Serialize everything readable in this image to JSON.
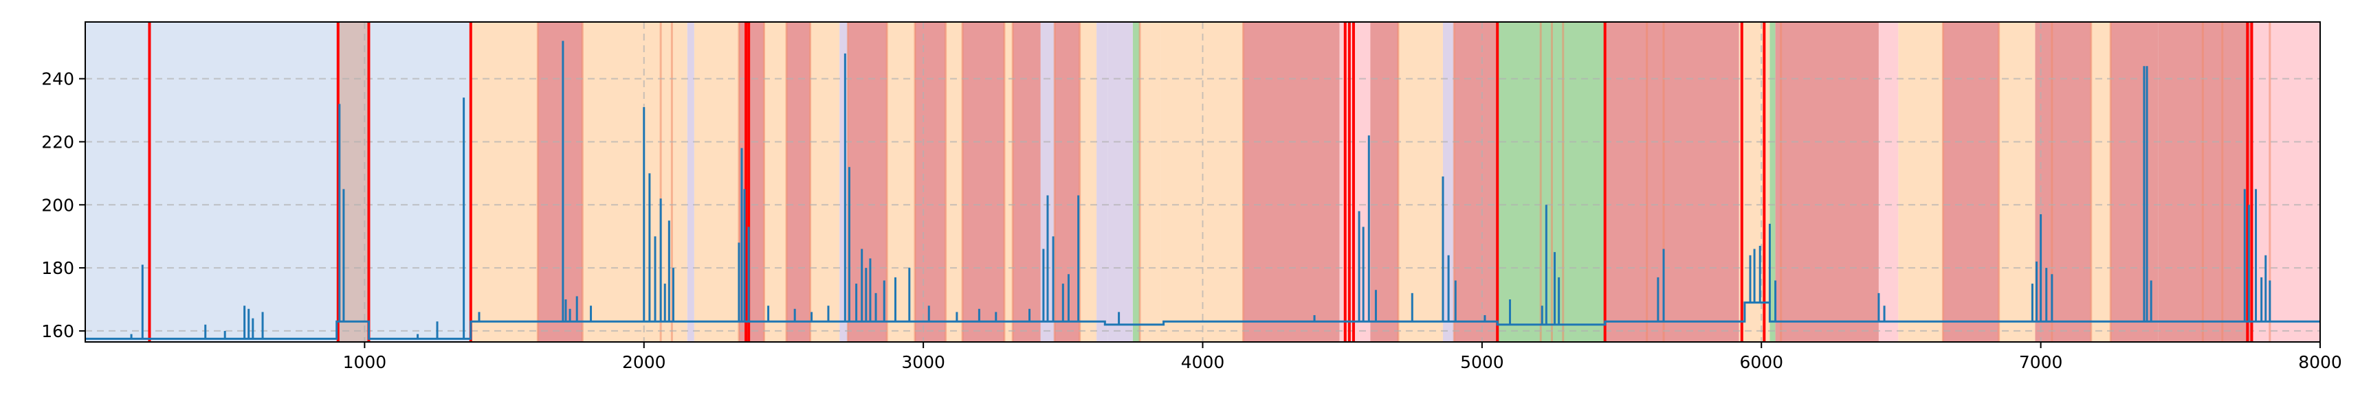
{
  "chart_data": {
    "type": "line",
    "title": "",
    "xlabel": "",
    "ylabel": "",
    "xlim": [
      0,
      8000
    ],
    "ylim": [
      156.5,
      258
    ],
    "grid": "dashed",
    "x_ticks": [
      1000,
      2000,
      3000,
      4000,
      5000,
      6000,
      7000,
      8000
    ],
    "x_tick_labels": [
      "1000",
      "2000",
      "3000",
      "4000",
      "5000",
      "6000",
      "7000",
      "8000"
    ],
    "y_ticks": [
      160,
      180,
      200,
      220,
      240
    ],
    "y_tick_labels": [
      "160",
      "180",
      "200",
      "220",
      "240"
    ],
    "line_color": "#1f77b4",
    "band_colors": {
      "blue": "#dbe5f4",
      "peach": "#ffdfbf",
      "red": "#e89a9a",
      "purple": "#ddd3ea",
      "green": "#a9d8a5",
      "taupe": "#d7c0bc",
      "pink": "#ffd0d6"
    },
    "background_bands": [
      {
        "x0": 0,
        "x1": 900,
        "color": "blue"
      },
      {
        "x0": 900,
        "x1": 1015,
        "color": "taupe"
      },
      {
        "x0": 1015,
        "x1": 1375,
        "color": "blue"
      },
      {
        "x0": 1375,
        "x1": 1620,
        "color": "peach"
      },
      {
        "x0": 1620,
        "x1": 1780,
        "color": "red"
      },
      {
        "x0": 1780,
        "x1": 2155,
        "color": "peach"
      },
      {
        "x0": 2155,
        "x1": 2180,
        "color": "purple"
      },
      {
        "x0": 2180,
        "x1": 2340,
        "color": "peach"
      },
      {
        "x0": 2340,
        "x1": 2430,
        "color": "red"
      },
      {
        "x0": 2430,
        "x1": 2510,
        "color": "peach"
      },
      {
        "x0": 2510,
        "x1": 2595,
        "color": "red"
      },
      {
        "x0": 2595,
        "x1": 2700,
        "color": "peach"
      },
      {
        "x0": 2700,
        "x1": 2730,
        "color": "purple"
      },
      {
        "x0": 2730,
        "x1": 2870,
        "color": "red"
      },
      {
        "x0": 2870,
        "x1": 2970,
        "color": "peach"
      },
      {
        "x0": 2970,
        "x1": 3080,
        "color": "red"
      },
      {
        "x0": 3080,
        "x1": 3140,
        "color": "peach"
      },
      {
        "x0": 3140,
        "x1": 3290,
        "color": "red"
      },
      {
        "x0": 3290,
        "x1": 3320,
        "color": "peach"
      },
      {
        "x0": 3320,
        "x1": 3420,
        "color": "red"
      },
      {
        "x0": 3420,
        "x1": 3470,
        "color": "purple"
      },
      {
        "x0": 3470,
        "x1": 3560,
        "color": "red"
      },
      {
        "x0": 3560,
        "x1": 3620,
        "color": "peach"
      },
      {
        "x0": 3620,
        "x1": 3660,
        "color": "purple"
      },
      {
        "x0": 3660,
        "x1": 3750,
        "color": "purple"
      },
      {
        "x0": 3750,
        "x1": 3775,
        "color": "green"
      },
      {
        "x0": 3775,
        "x1": 3850,
        "color": "peach"
      },
      {
        "x0": 3850,
        "x1": 4145,
        "color": "peach"
      },
      {
        "x0": 4145,
        "x1": 4490,
        "color": "red"
      },
      {
        "x0": 4490,
        "x1": 4560,
        "color": "pink"
      },
      {
        "x0": 4560,
        "x1": 4600,
        "color": "pink"
      },
      {
        "x0": 4600,
        "x1": 4700,
        "color": "red"
      },
      {
        "x0": 4700,
        "x1": 4860,
        "color": "peach"
      },
      {
        "x0": 4860,
        "x1": 4900,
        "color": "purple"
      },
      {
        "x0": 4900,
        "x1": 5055,
        "color": "red"
      },
      {
        "x0": 5055,
        "x1": 5440,
        "color": "green"
      },
      {
        "x0": 5440,
        "x1": 5920,
        "color": "red"
      },
      {
        "x0": 5920,
        "x1": 6030,
        "color": "peach"
      },
      {
        "x0": 6030,
        "x1": 6050,
        "color": "green"
      },
      {
        "x0": 6050,
        "x1": 6420,
        "color": "red"
      },
      {
        "x0": 6420,
        "x1": 6490,
        "color": "pink"
      },
      {
        "x0": 6490,
        "x1": 6650,
        "color": "peach"
      },
      {
        "x0": 6650,
        "x1": 6850,
        "color": "red"
      },
      {
        "x0": 6850,
        "x1": 6980,
        "color": "peach"
      },
      {
        "x0": 6980,
        "x1": 7180,
        "color": "red"
      },
      {
        "x0": 7180,
        "x1": 7250,
        "color": "peach"
      },
      {
        "x0": 7250,
        "x1": 7420,
        "color": "red"
      },
      {
        "x0": 7420,
        "x1": 7760,
        "color": "red"
      },
      {
        "x0": 7760,
        "x1": 8000,
        "color": "pink"
      }
    ],
    "band_edges_faint": [
      1620,
      1780,
      2060,
      2100,
      2340,
      2430,
      2510,
      2595,
      2730,
      2870,
      2970,
      3080,
      3140,
      3290,
      3320,
      3470,
      3560,
      3775,
      4145,
      4700,
      4900,
      5210,
      5250,
      5290,
      5590,
      5650,
      6070,
      6650,
      6850,
      7040,
      7180,
      7250,
      7580,
      7650,
      7820
    ],
    "band_edges_strong": [
      230,
      905,
      1015,
      1380,
      2365,
      2375,
      4510,
      4525,
      4540,
      5055,
      5440,
      5930,
      6010,
      7740,
      7755
    ],
    "baseline_segments": [
      {
        "x0": 0,
        "x1": 900,
        "y": 157.5
      },
      {
        "x0": 900,
        "x1": 1015,
        "y": 163
      },
      {
        "x0": 1015,
        "x1": 1380,
        "y": 157.5
      },
      {
        "x0": 1380,
        "x1": 3650,
        "y": 163
      },
      {
        "x0": 3650,
        "x1": 3860,
        "y": 162
      },
      {
        "x0": 3860,
        "x1": 5055,
        "y": 163
      },
      {
        "x0": 5055,
        "x1": 5440,
        "y": 162
      },
      {
        "x0": 5440,
        "x1": 5940,
        "y": 163
      },
      {
        "x0": 5940,
        "x1": 6030,
        "y": 169
      },
      {
        "x0": 6030,
        "x1": 8000,
        "y": 163
      }
    ],
    "spikes": [
      {
        "x": 205,
        "y": 181
      },
      {
        "x": 165,
        "y": 159
      },
      {
        "x": 430,
        "y": 162
      },
      {
        "x": 500,
        "y": 160
      },
      {
        "x": 570,
        "y": 168
      },
      {
        "x": 585,
        "y": 167
      },
      {
        "x": 600,
        "y": 164
      },
      {
        "x": 635,
        "y": 166
      },
      {
        "x": 910,
        "y": 232
      },
      {
        "x": 925,
        "y": 205
      },
      {
        "x": 1190,
        "y": 159
      },
      {
        "x": 1260,
        "y": 163
      },
      {
        "x": 1355,
        "y": 234
      },
      {
        "x": 1410,
        "y": 166
      },
      {
        "x": 1710,
        "y": 252
      },
      {
        "x": 1720,
        "y": 170
      },
      {
        "x": 1735,
        "y": 167
      },
      {
        "x": 1760,
        "y": 171
      },
      {
        "x": 1810,
        "y": 168
      },
      {
        "x": 2000,
        "y": 231
      },
      {
        "x": 2020,
        "y": 210
      },
      {
        "x": 2040,
        "y": 190
      },
      {
        "x": 2060,
        "y": 202
      },
      {
        "x": 2075,
        "y": 175
      },
      {
        "x": 2090,
        "y": 195
      },
      {
        "x": 2105,
        "y": 180
      },
      {
        "x": 2340,
        "y": 188
      },
      {
        "x": 2350,
        "y": 218
      },
      {
        "x": 2360,
        "y": 205
      },
      {
        "x": 2375,
        "y": 193
      },
      {
        "x": 2445,
        "y": 168
      },
      {
        "x": 2540,
        "y": 167
      },
      {
        "x": 2600,
        "y": 166
      },
      {
        "x": 2660,
        "y": 168
      },
      {
        "x": 2720,
        "y": 248
      },
      {
        "x": 2735,
        "y": 212
      },
      {
        "x": 2760,
        "y": 175
      },
      {
        "x": 2780,
        "y": 186
      },
      {
        "x": 2795,
        "y": 180
      },
      {
        "x": 2810,
        "y": 183
      },
      {
        "x": 2830,
        "y": 172
      },
      {
        "x": 2860,
        "y": 176
      },
      {
        "x": 2900,
        "y": 177
      },
      {
        "x": 2950,
        "y": 180
      },
      {
        "x": 3020,
        "y": 168
      },
      {
        "x": 3120,
        "y": 166
      },
      {
        "x": 3200,
        "y": 167
      },
      {
        "x": 3260,
        "y": 166
      },
      {
        "x": 3380,
        "y": 167
      },
      {
        "x": 3430,
        "y": 186
      },
      {
        "x": 3445,
        "y": 203
      },
      {
        "x": 3465,
        "y": 190
      },
      {
        "x": 3500,
        "y": 175
      },
      {
        "x": 3520,
        "y": 178
      },
      {
        "x": 3555,
        "y": 203
      },
      {
        "x": 3700,
        "y": 166
      },
      {
        "x": 4400,
        "y": 165
      },
      {
        "x": 4560,
        "y": 198
      },
      {
        "x": 4575,
        "y": 193
      },
      {
        "x": 4595,
        "y": 222
      },
      {
        "x": 4620,
        "y": 173
      },
      {
        "x": 4750,
        "y": 172
      },
      {
        "x": 4860,
        "y": 209
      },
      {
        "x": 4880,
        "y": 184
      },
      {
        "x": 4905,
        "y": 176
      },
      {
        "x": 5010,
        "y": 165
      },
      {
        "x": 5100,
        "y": 170
      },
      {
        "x": 5215,
        "y": 168
      },
      {
        "x": 5230,
        "y": 200
      },
      {
        "x": 5260,
        "y": 185
      },
      {
        "x": 5275,
        "y": 177
      },
      {
        "x": 5630,
        "y": 177
      },
      {
        "x": 5650,
        "y": 186
      },
      {
        "x": 5960,
        "y": 184
      },
      {
        "x": 5975,
        "y": 186
      },
      {
        "x": 5995,
        "y": 187
      },
      {
        "x": 6030,
        "y": 194
      },
      {
        "x": 6050,
        "y": 176
      },
      {
        "x": 6420,
        "y": 172
      },
      {
        "x": 6440,
        "y": 168
      },
      {
        "x": 6970,
        "y": 175
      },
      {
        "x": 6985,
        "y": 182
      },
      {
        "x": 7000,
        "y": 197
      },
      {
        "x": 7020,
        "y": 180
      },
      {
        "x": 7040,
        "y": 178
      },
      {
        "x": 7370,
        "y": 244
      },
      {
        "x": 7380,
        "y": 244
      },
      {
        "x": 7395,
        "y": 176
      },
      {
        "x": 7730,
        "y": 205
      },
      {
        "x": 7745,
        "y": 200
      },
      {
        "x": 7770,
        "y": 205
      },
      {
        "x": 7790,
        "y": 177
      },
      {
        "x": 7805,
        "y": 184
      },
      {
        "x": 7820,
        "y": 176
      }
    ]
  }
}
